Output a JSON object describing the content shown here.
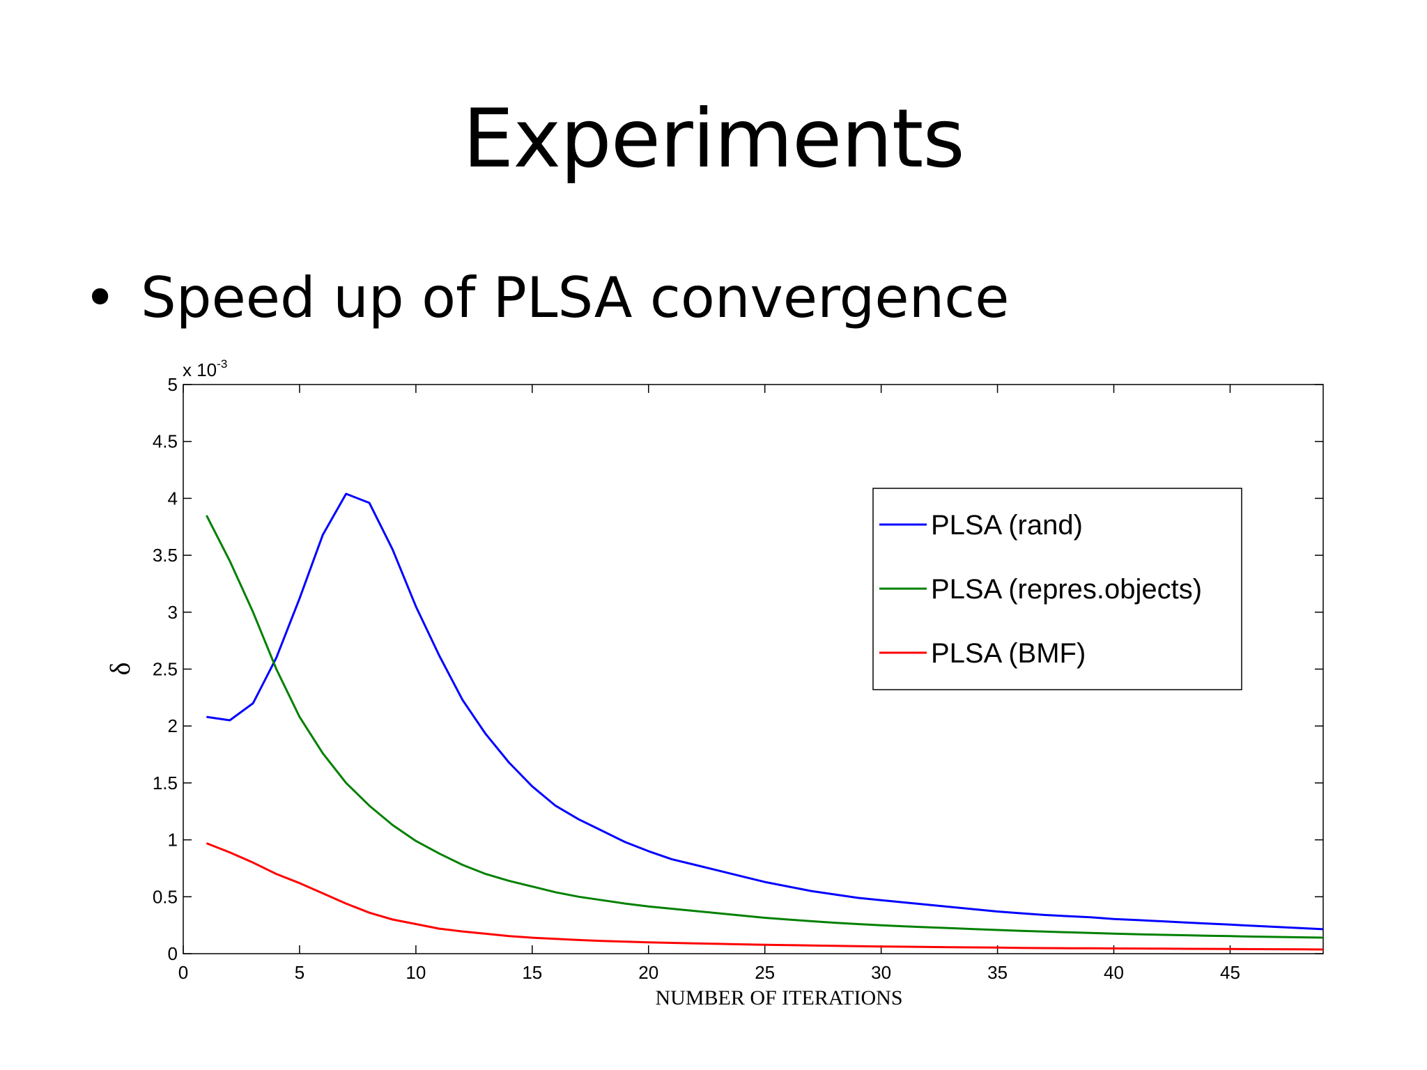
{
  "slide": {
    "title": "Experiments",
    "bullet_symbol": "•",
    "bullet_text": "Speed up of PLSA convergence"
  },
  "chart_data": {
    "type": "line",
    "title": "",
    "xlabel": "NUMBER OF ITERATIONS",
    "ylabel": "δ",
    "y_multiplier_label": "x 10",
    "y_multiplier_exponent": "-3",
    "xlim": [
      0,
      49
    ],
    "ylim": [
      0,
      5
    ],
    "xticks": [
      "0",
      "5",
      "10",
      "15",
      "20",
      "25",
      "30",
      "35",
      "40",
      "45"
    ],
    "yticks": [
      "0",
      "0.5",
      "1",
      "1.5",
      "2",
      "2.5",
      "3",
      "3.5",
      "4",
      "4.5",
      "5"
    ],
    "grid": false,
    "legend_position": "top-right",
    "x": [
      1,
      2,
      3,
      4,
      5,
      6,
      7,
      8,
      9,
      10,
      11,
      12,
      13,
      14,
      15,
      16,
      17,
      18,
      19,
      20,
      21,
      22,
      23,
      24,
      25,
      26,
      27,
      28,
      29,
      30,
      31,
      32,
      33,
      34,
      35,
      36,
      37,
      38,
      39,
      40,
      41,
      42,
      43,
      44,
      45,
      46,
      47,
      48,
      49
    ],
    "series": [
      {
        "name": "PLSA (rand)",
        "color": "#0000ff",
        "values": [
          2.08,
          2.05,
          2.2,
          2.6,
          3.12,
          3.68,
          4.04,
          3.96,
          3.55,
          3.05,
          2.62,
          2.23,
          1.93,
          1.68,
          1.47,
          1.3,
          1.18,
          1.08,
          0.98,
          0.9,
          0.83,
          0.78,
          0.73,
          0.68,
          0.63,
          0.59,
          0.55,
          0.52,
          0.49,
          0.47,
          0.45,
          0.43,
          0.41,
          0.39,
          0.37,
          0.355,
          0.34,
          0.33,
          0.32,
          0.305,
          0.295,
          0.285,
          0.275,
          0.265,
          0.255,
          0.245,
          0.235,
          0.225,
          0.215
        ]
      },
      {
        "name": "PLSA (repres.objects)",
        "color": "#008000",
        "values": [
          3.85,
          3.45,
          3.0,
          2.5,
          2.08,
          1.76,
          1.5,
          1.3,
          1.13,
          0.99,
          0.88,
          0.78,
          0.7,
          0.64,
          0.59,
          0.54,
          0.5,
          0.47,
          0.44,
          0.415,
          0.395,
          0.375,
          0.355,
          0.335,
          0.315,
          0.3,
          0.285,
          0.272,
          0.26,
          0.25,
          0.24,
          0.232,
          0.224,
          0.216,
          0.208,
          0.2,
          0.194,
          0.188,
          0.182,
          0.176,
          0.171,
          0.166,
          0.162,
          0.158,
          0.154,
          0.15,
          0.147,
          0.144,
          0.141
        ]
      },
      {
        "name": "PLSA (BMF)",
        "color": "#ff0000",
        "values": [
          0.97,
          0.89,
          0.8,
          0.7,
          0.62,
          0.53,
          0.44,
          0.36,
          0.3,
          0.26,
          0.22,
          0.195,
          0.175,
          0.155,
          0.14,
          0.13,
          0.12,
          0.112,
          0.105,
          0.1,
          0.095,
          0.09,
          0.086,
          0.082,
          0.078,
          0.075,
          0.072,
          0.069,
          0.066,
          0.063,
          0.061,
          0.059,
          0.057,
          0.055,
          0.053,
          0.051,
          0.049,
          0.048,
          0.047,
          0.046,
          0.045,
          0.044,
          0.043,
          0.042,
          0.041,
          0.04,
          0.039,
          0.038,
          0.037
        ]
      }
    ]
  }
}
